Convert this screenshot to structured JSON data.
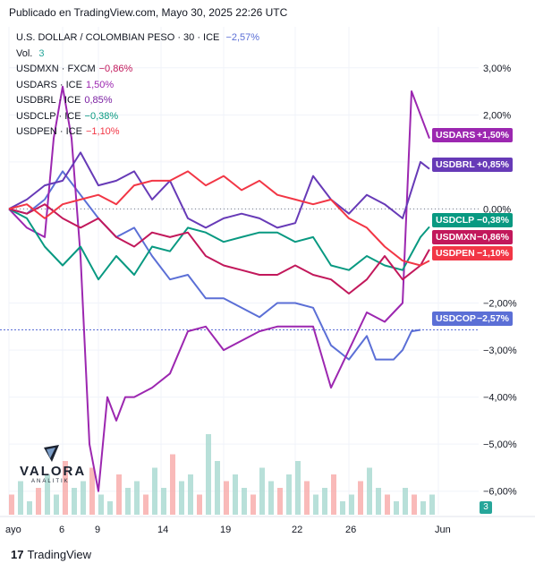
{
  "header": {
    "publisher": "Publicado en TradingView.com, Mayo 30, 2025 22:26 UTC",
    "main_symbol": "U.S. DOLLAR / COLOMBIAN PESO · 30 · ICE",
    "main_change": "−2,57%",
    "volume_label": "Vol.",
    "volume_value": "3"
  },
  "legend": [
    {
      "label": "USDMXN · FXCM",
      "change": "−0,86%",
      "color": "#c2185b"
    },
    {
      "label": "USDARS · ICE",
      "change": "1,50%",
      "color": "#9c27b0"
    },
    {
      "label": "USDBRL · ICE",
      "change": "0,85%",
      "color": "#7b1fa2"
    },
    {
      "label": "USDCLP · ICE",
      "change": "−0,38%",
      "color": "#089981"
    },
    {
      "label": "USDPEN · ICE",
      "change": "−1,10%",
      "color": "#f23645"
    }
  ],
  "price_tags": [
    {
      "symbol": "USDARS",
      "value": "+1,50%",
      "color": "#9c27b0"
    },
    {
      "symbol": "USDBRL",
      "value": "+0,85%",
      "color": "#673ab7"
    },
    {
      "symbol": "USDCLP",
      "value": "−0,38%",
      "color": "#089981"
    },
    {
      "symbol": "USDMXN",
      "value": "−0,86%",
      "color": "#c2185b"
    },
    {
      "symbol": "USDPEN",
      "value": "−1,10%",
      "color": "#f23645"
    },
    {
      "symbol": "USDCOP",
      "value": "−2,57%",
      "color": "#5b6fd6"
    }
  ],
  "logo": {
    "name": "VALORA",
    "sub": "ANALITIK"
  },
  "footer": {
    "brand": "TradingView"
  },
  "volume_badge": "3",
  "chart_data": {
    "type": "line",
    "y_unit": "%",
    "y_ticks": [
      "3,00%",
      "2,00%",
      "1,00%",
      "0,00%",
      "−2,00%",
      "−3,00%",
      "−4,00%",
      "−5,00%",
      "−6,00%"
    ],
    "y_tick_values": [
      3,
      2,
      1,
      0,
      -2,
      -3,
      -4,
      -5,
      -6
    ],
    "ylim": [
      -6.5,
      3.3
    ],
    "x_ticks": [
      "ayo",
      "6",
      "9",
      "14",
      "19",
      "22",
      "26",
      "Jun"
    ],
    "x_tick_values": [
      0,
      6,
      10,
      17,
      24,
      32,
      38,
      48
    ],
    "xlim": [
      0,
      48
    ],
    "series": [
      {
        "name": "USDCOP",
        "color": "#5b6fd6",
        "x": [
          0,
          2,
          4,
          6,
          8,
          10,
          12,
          14,
          16,
          18,
          20,
          22,
          24,
          26,
          28,
          30,
          32,
          34,
          36,
          38,
          40,
          41,
          42,
          43,
          44,
          45,
          46
        ],
        "y": [
          0,
          -0.1,
          0.2,
          0.8,
          0.3,
          -0.2,
          -0.6,
          -0.4,
          -1.0,
          -1.5,
          -1.4,
          -1.9,
          -1.9,
          -2.1,
          -2.3,
          -2.0,
          -2.0,
          -2.1,
          -2.9,
          -3.2,
          -2.7,
          -3.2,
          -3.2,
          -3.2,
          -3.0,
          -2.6,
          -2.57
        ]
      },
      {
        "name": "USDARS",
        "color": "#9c27b0",
        "x": [
          0,
          2,
          4,
          5,
          6,
          7,
          8,
          9,
          10,
          11,
          12,
          13,
          14,
          16,
          18,
          20,
          22,
          24,
          26,
          28,
          30,
          32,
          34,
          36,
          38,
          40,
          42,
          44,
          45,
          46,
          47
        ],
        "y": [
          0,
          -0.4,
          -0.6,
          1.5,
          2.6,
          1.5,
          -1.0,
          -5.0,
          -6.0,
          -4.0,
          -4.5,
          -4.0,
          -4.0,
          -3.8,
          -3.5,
          -2.6,
          -2.5,
          -3.0,
          -2.8,
          -2.6,
          -2.5,
          -2.5,
          -2.5,
          -3.8,
          -3.0,
          -2.2,
          -2.4,
          -2.0,
          2.5,
          2.0,
          1.5
        ]
      },
      {
        "name": "USDBRL",
        "color": "#673ab7",
        "x": [
          0,
          2,
          4,
          6,
          8,
          10,
          12,
          14,
          16,
          18,
          20,
          22,
          24,
          26,
          28,
          30,
          32,
          34,
          36,
          38,
          40,
          42,
          44,
          46,
          47
        ],
        "y": [
          0,
          0.2,
          0.5,
          0.6,
          1.2,
          0.5,
          0.6,
          0.8,
          0.2,
          0.6,
          -0.2,
          -0.4,
          -0.2,
          -0.1,
          -0.2,
          -0.4,
          -0.3,
          0.7,
          0.2,
          -0.1,
          0.3,
          0.1,
          -0.2,
          1.0,
          0.85
        ]
      },
      {
        "name": "USDCLP",
        "color": "#089981",
        "x": [
          0,
          2,
          4,
          6,
          8,
          10,
          12,
          14,
          16,
          18,
          20,
          22,
          24,
          26,
          28,
          30,
          32,
          34,
          36,
          38,
          40,
          42,
          44,
          46,
          47
        ],
        "y": [
          0,
          -0.2,
          -0.8,
          -1.2,
          -0.8,
          -1.5,
          -1.0,
          -1.4,
          -0.8,
          -0.9,
          -0.4,
          -0.5,
          -0.7,
          -0.6,
          -0.5,
          -0.5,
          -0.7,
          -0.6,
          -1.2,
          -1.3,
          -1.0,
          -1.2,
          -1.3,
          -0.6,
          -0.38
        ]
      },
      {
        "name": "USDMXN",
        "color": "#c2185b",
        "x": [
          0,
          2,
          4,
          6,
          8,
          10,
          12,
          14,
          16,
          18,
          20,
          22,
          24,
          26,
          28,
          30,
          32,
          34,
          36,
          38,
          40,
          42,
          44,
          46,
          47
        ],
        "y": [
          0,
          -0.1,
          0.1,
          -0.2,
          -0.4,
          -0.2,
          -0.6,
          -0.8,
          -0.5,
          -0.6,
          -0.5,
          -1.0,
          -1.2,
          -1.3,
          -1.4,
          -1.4,
          -1.2,
          -1.4,
          -1.5,
          -1.8,
          -1.5,
          -1.0,
          -1.5,
          -1.2,
          -0.86
        ]
      },
      {
        "name": "USDPEN",
        "color": "#f23645",
        "x": [
          0,
          2,
          4,
          6,
          8,
          10,
          12,
          14,
          16,
          18,
          20,
          22,
          24,
          26,
          28,
          30,
          32,
          34,
          36,
          38,
          40,
          42,
          44,
          46,
          47
        ],
        "y": [
          0,
          0.1,
          -0.2,
          0.1,
          0.2,
          0.3,
          0.1,
          0.5,
          0.6,
          0.6,
          0.8,
          0.5,
          0.7,
          0.4,
          0.6,
          0.3,
          0.2,
          0.1,
          0.2,
          -0.2,
          -0.4,
          -0.8,
          -1.1,
          -1.2,
          -1.1
        ]
      }
    ],
    "volume": [
      3,
      5,
      2,
      4,
      6,
      3,
      8,
      4,
      5,
      7,
      3,
      2,
      6,
      4,
      5,
      3,
      7,
      4,
      9,
      5,
      6,
      3,
      12,
      8,
      5,
      6,
      4,
      3,
      7,
      5,
      4,
      6,
      8,
      5,
      3,
      4,
      6,
      2,
      3,
      5,
      7,
      4,
      3,
      2,
      4,
      3,
      2,
      3
    ]
  }
}
